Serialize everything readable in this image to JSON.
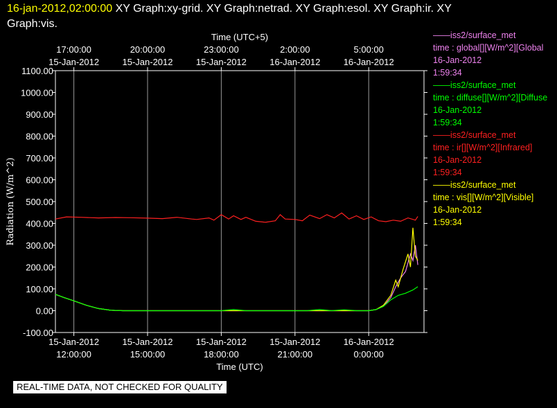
{
  "header": {
    "timestamp": "16-jan-2012,02:00:00",
    "graphs_line1": "  XY Graph:xy-grid.  XY Graph:netrad.  XY Graph:esol.  XY Graph:ir.  XY",
    "graphs_line2": "Graph:vis."
  },
  "legend": [
    {
      "line1": "——iss2/surface_met",
      "line2": "time : global[][W/m^2][Global",
      "date": "16-Jan-2012",
      "time": "1:59:34",
      "color": "#ee82ee"
    },
    {
      "line1": "——iss2/surface_met",
      "line2": "time : diffuse[][W/m^2][Diffuse",
      "date": "16-Jan-2012",
      "time": "1:59:34",
      "color": "#00ff00"
    },
    {
      "line1": "——iss2/surface_met",
      "line2": "time : ir[][W/m^2][Infrared]",
      "date": "16-Jan-2012",
      "time": "1:59:34",
      "color": "#ff2020"
    },
    {
      "line1": "——iss2/surface_met",
      "line2": "time : vis[][W/m^2][Visible]",
      "date": "16-Jan-2012",
      "time": "1:59:34",
      "color": "#ffff00"
    }
  ],
  "disclaimer": "REAL-TIME DATA, NOT CHECKED FOR QUALITY",
  "chart_data": {
    "type": "line",
    "title": "",
    "xlabel": "Time (UTC)",
    "x2label": "Time (UTC+5)",
    "ylabel": "Radiation (W/m^2)",
    "ylim": [
      -100,
      1100
    ],
    "yticks": [
      "-100.00",
      "0.00",
      "100.00",
      "200.00",
      "300.00",
      "400.00",
      "500.00",
      "600.00",
      "700.00",
      "800.00",
      "900.00",
      "1000.00",
      "1100.00"
    ],
    "xlim_hours": [
      -0.75,
      14.25
    ],
    "x_ticks": [
      {
        "hour": 0,
        "date": "15-Jan-2012",
        "time": "12:00:00"
      },
      {
        "hour": 3,
        "date": "15-Jan-2012",
        "time": "15:00:00"
      },
      {
        "hour": 6,
        "date": "15-Jan-2012",
        "time": "18:00:00"
      },
      {
        "hour": 9,
        "date": "15-Jan-2012",
        "time": "21:00:00"
      },
      {
        "hour": 12,
        "date": "16-Jan-2012",
        "time": "0:00:00"
      }
    ],
    "x2_ticks": [
      {
        "hour": 0,
        "time": "17:00:00",
        "date": "15-Jan-2012"
      },
      {
        "hour": 3,
        "time": "20:00:00",
        "date": "15-Jan-2012"
      },
      {
        "hour": 6,
        "time": "23:00:00",
        "date": "15-Jan-2012"
      },
      {
        "hour": 9,
        "time": "2:00:00",
        "date": "16-Jan-2012"
      },
      {
        "hour": 12,
        "time": "5:00:00",
        "date": "16-Jan-2012"
      }
    ],
    "grid": true,
    "legend_position": "right",
    "series": [
      {
        "name": "iss2/surface_met time : ir[][W/m^2][Infrared]",
        "color": "#ff2020",
        "x": [
          -0.75,
          -0.3,
          0.3,
          1.0,
          1.7,
          2.3,
          3.0,
          3.6,
          4.2,
          4.8,
          5.0,
          5.5,
          5.7,
          6.0,
          6.3,
          6.5,
          6.8,
          7.0,
          7.4,
          7.8,
          8.2,
          8.4,
          8.6,
          9.0,
          9.3,
          9.6,
          10.0,
          10.3,
          10.6,
          10.9,
          11.2,
          11.5,
          11.8,
          12.1,
          12.4,
          12.7,
          13.0,
          13.3,
          13.6,
          13.9,
          14.0
        ],
        "y": [
          420,
          430,
          428,
          425,
          427,
          426,
          424,
          422,
          428,
          420,
          418,
          425,
          415,
          440,
          420,
          435,
          418,
          428,
          410,
          405,
          412,
          440,
          420,
          418,
          412,
          438,
          422,
          440,
          425,
          448,
          420,
          435,
          418,
          430,
          412,
          408,
          415,
          410,
          425,
          415,
          432
        ]
      },
      {
        "name": "iss2/surface_met time : global[][W/m^2][Global",
        "color": "#ee82ee",
        "x": [
          -0.75,
          -0.4,
          0.0,
          0.5,
          1.0,
          1.5,
          2.0,
          4.0,
          6.0,
          8.0,
          10.0,
          11.5,
          12.0,
          12.3,
          12.6,
          12.9,
          13.1,
          13.3,
          13.5,
          13.7,
          13.8,
          13.9,
          14.0
        ],
        "y": [
          75,
          60,
          45,
          25,
          10,
          2,
          0,
          0,
          0,
          0,
          0,
          0,
          0,
          5,
          20,
          60,
          110,
          150,
          180,
          260,
          230,
          300,
          210
        ]
      },
      {
        "name": "iss2/surface_met time : vis[][W/m^2][Visible]",
        "color": "#ffff00",
        "x": [
          -0.75,
          -0.4,
          0.0,
          0.5,
          1.0,
          1.5,
          2.0,
          4.0,
          6.0,
          8.0,
          10.0,
          11.5,
          12.0,
          12.3,
          12.6,
          12.9,
          13.1,
          13.2,
          13.4,
          13.6,
          13.7,
          13.8,
          13.9,
          14.0
        ],
        "y": [
          75,
          60,
          45,
          25,
          10,
          2,
          0,
          0,
          0,
          0,
          0,
          0,
          0,
          5,
          25,
          70,
          140,
          110,
          190,
          260,
          200,
          380,
          250,
          230
        ]
      },
      {
        "name": "iss2/surface_met time : diffuse[][W/m^2][Diffuse",
        "color": "#00ff00",
        "x": [
          -0.75,
          -0.4,
          0.0,
          0.5,
          1.0,
          1.5,
          2.0,
          4.0,
          6.0,
          6.5,
          7.0,
          8.0,
          9.5,
          10.0,
          10.5,
          11.0,
          11.5,
          12.0,
          12.3,
          12.6,
          12.9,
          13.2,
          13.5,
          13.8,
          14.0
        ],
        "y": [
          75,
          60,
          45,
          25,
          10,
          2,
          0,
          0,
          0,
          5,
          0,
          0,
          0,
          5,
          0,
          4,
          0,
          0,
          5,
          20,
          50,
          70,
          80,
          95,
          110
        ]
      }
    ]
  }
}
